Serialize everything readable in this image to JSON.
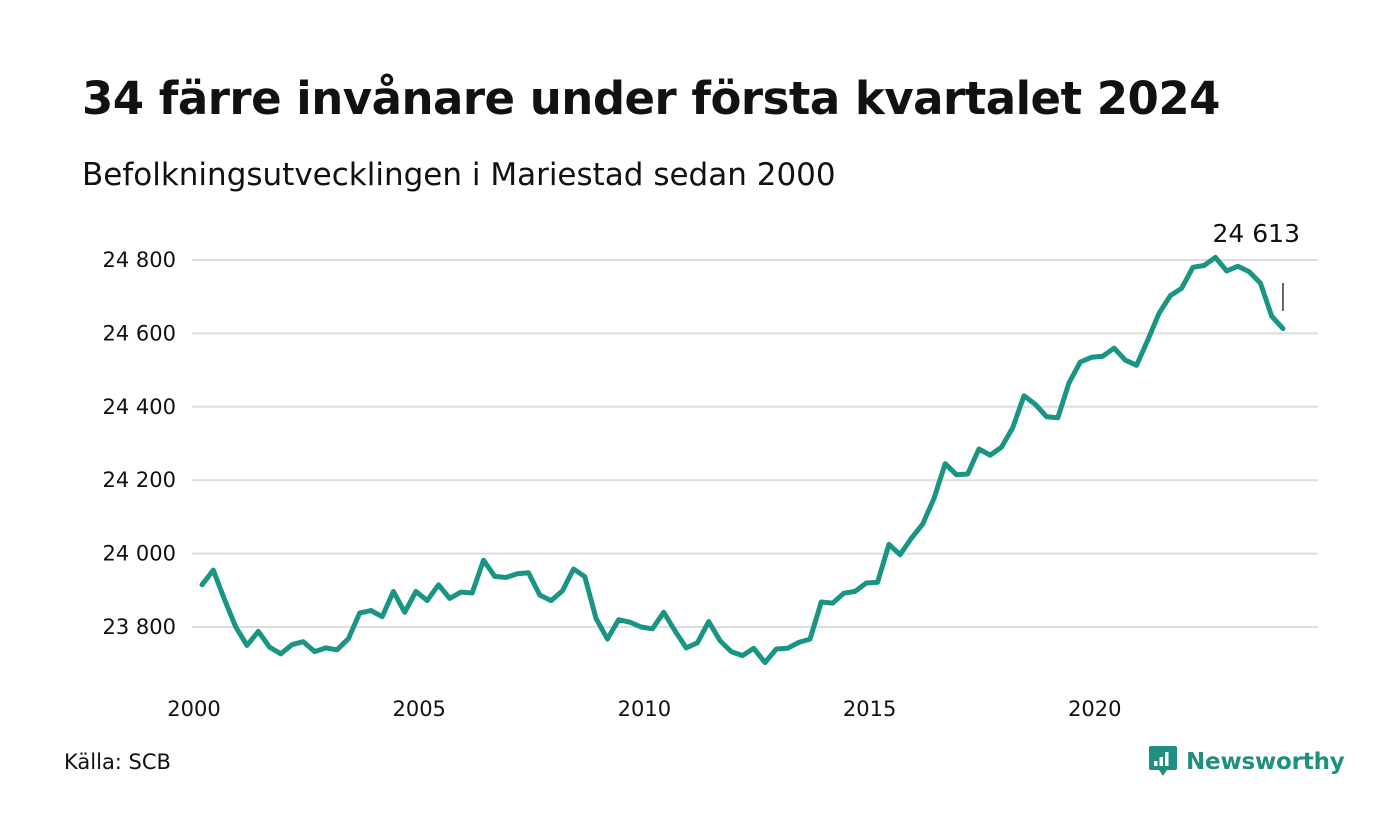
{
  "title": "34 färre invånare under första kvartalet 2024",
  "subtitle": "Befolkningsutvecklingen i Mariestad sedan 2000",
  "source": "Källa: SCB",
  "brand": {
    "name": "Newsworthy",
    "icon": "newsworthy-logo-icon",
    "color": "#1f8f80"
  },
  "chart_data": {
    "type": "line",
    "title": "34 färre invånare under första kvartalet 2024",
    "subtitle": "Befolkningsutvecklingen i Mariestad sedan 2000",
    "xlabel": "",
    "ylabel": "",
    "xlim": [
      2000,
      2024.5
    ],
    "ylim": [
      23680,
      24830
    ],
    "yticks": [
      23800,
      24000,
      24200,
      24400,
      24600,
      24800
    ],
    "ytick_labels": [
      "23 800",
      "24 000",
      "24 200",
      "24 400",
      "24 600",
      "24 800"
    ],
    "xticks": [
      2000,
      2005,
      2010,
      2015,
      2020
    ],
    "xtick_labels": [
      "2000",
      "2005",
      "2010",
      "2015",
      "2020"
    ],
    "grid": true,
    "line_color": "#1a9483",
    "annotation": {
      "label": "24 613",
      "value": 24613
    },
    "series": [
      {
        "x": [
          2000.0,
          2000.25,
          2000.5,
          2000.75,
          2001.0,
          2001.25,
          2001.5,
          2001.75,
          2002.0,
          2002.25,
          2002.5,
          2002.75,
          2003.0,
          2003.25,
          2003.5,
          2003.75,
          2004.0,
          2004.25,
          2004.5,
          2004.75,
          2005.0,
          2005.25,
          2005.5,
          2005.75,
          2006.0,
          2006.25,
          2006.5,
          2006.75,
          2007.0,
          2007.25,
          2007.5,
          2007.75,
          2008.0,
          2008.25,
          2008.5,
          2008.75,
          2009.0,
          2009.25,
          2009.5,
          2009.75,
          2010.0,
          2010.25,
          2010.5,
          2010.75,
          2011.0,
          2011.25,
          2011.5,
          2011.75,
          2012.0,
          2012.25,
          2012.5,
          2012.75,
          2013.0,
          2013.25,
          2013.5,
          2013.75,
          2014.0,
          2014.25,
          2014.5,
          2014.75,
          2015.0,
          2015.25,
          2015.5,
          2015.75,
          2016.0,
          2016.25,
          2016.5,
          2016.75,
          2017.0,
          2017.25,
          2017.5,
          2017.75,
          2018.0,
          2018.25,
          2018.5,
          2018.75,
          2019.0,
          2019.25,
          2019.5,
          2019.75,
          2020.0,
          2020.25,
          2020.5,
          2020.75,
          2021.0,
          2021.25,
          2021.5,
          2021.75,
          2022.0,
          2022.25,
          2022.5,
          2022.75,
          2023.0,
          2023.25,
          2023.5,
          2023.75,
          2024.0
        ],
        "values": [
          23915,
          23955,
          23875,
          23800,
          23750,
          23788,
          23745,
          23727,
          23752,
          23760,
          23733,
          23743,
          23738,
          23768,
          23838,
          23845,
          23828,
          23897,
          23840,
          23897,
          23872,
          23915,
          23878,
          23895,
          23893,
          23982,
          23938,
          23935,
          23945,
          23948,
          23887,
          23872,
          23898,
          23958,
          23937,
          23823,
          23767,
          23820,
          23813,
          23800,
          23795,
          23840,
          23790,
          23743,
          23757,
          23815,
          23763,
          23733,
          23722,
          23742,
          23703,
          23740,
          23742,
          23758,
          23767,
          23868,
          23865,
          23892,
          23897,
          23920,
          23922,
          24025,
          23997,
          24042,
          24080,
          24150,
          24245,
          24215,
          24217,
          24285,
          24268,
          24290,
          24343,
          24430,
          24407,
          24373,
          24370,
          24465,
          24522,
          24535,
          24538,
          24560,
          24527,
          24513,
          24582,
          24655,
          24703,
          24723,
          24780,
          24785,
          24807,
          24770,
          24783,
          24768,
          24737,
          24647,
          24613
        ]
      }
    ]
  }
}
